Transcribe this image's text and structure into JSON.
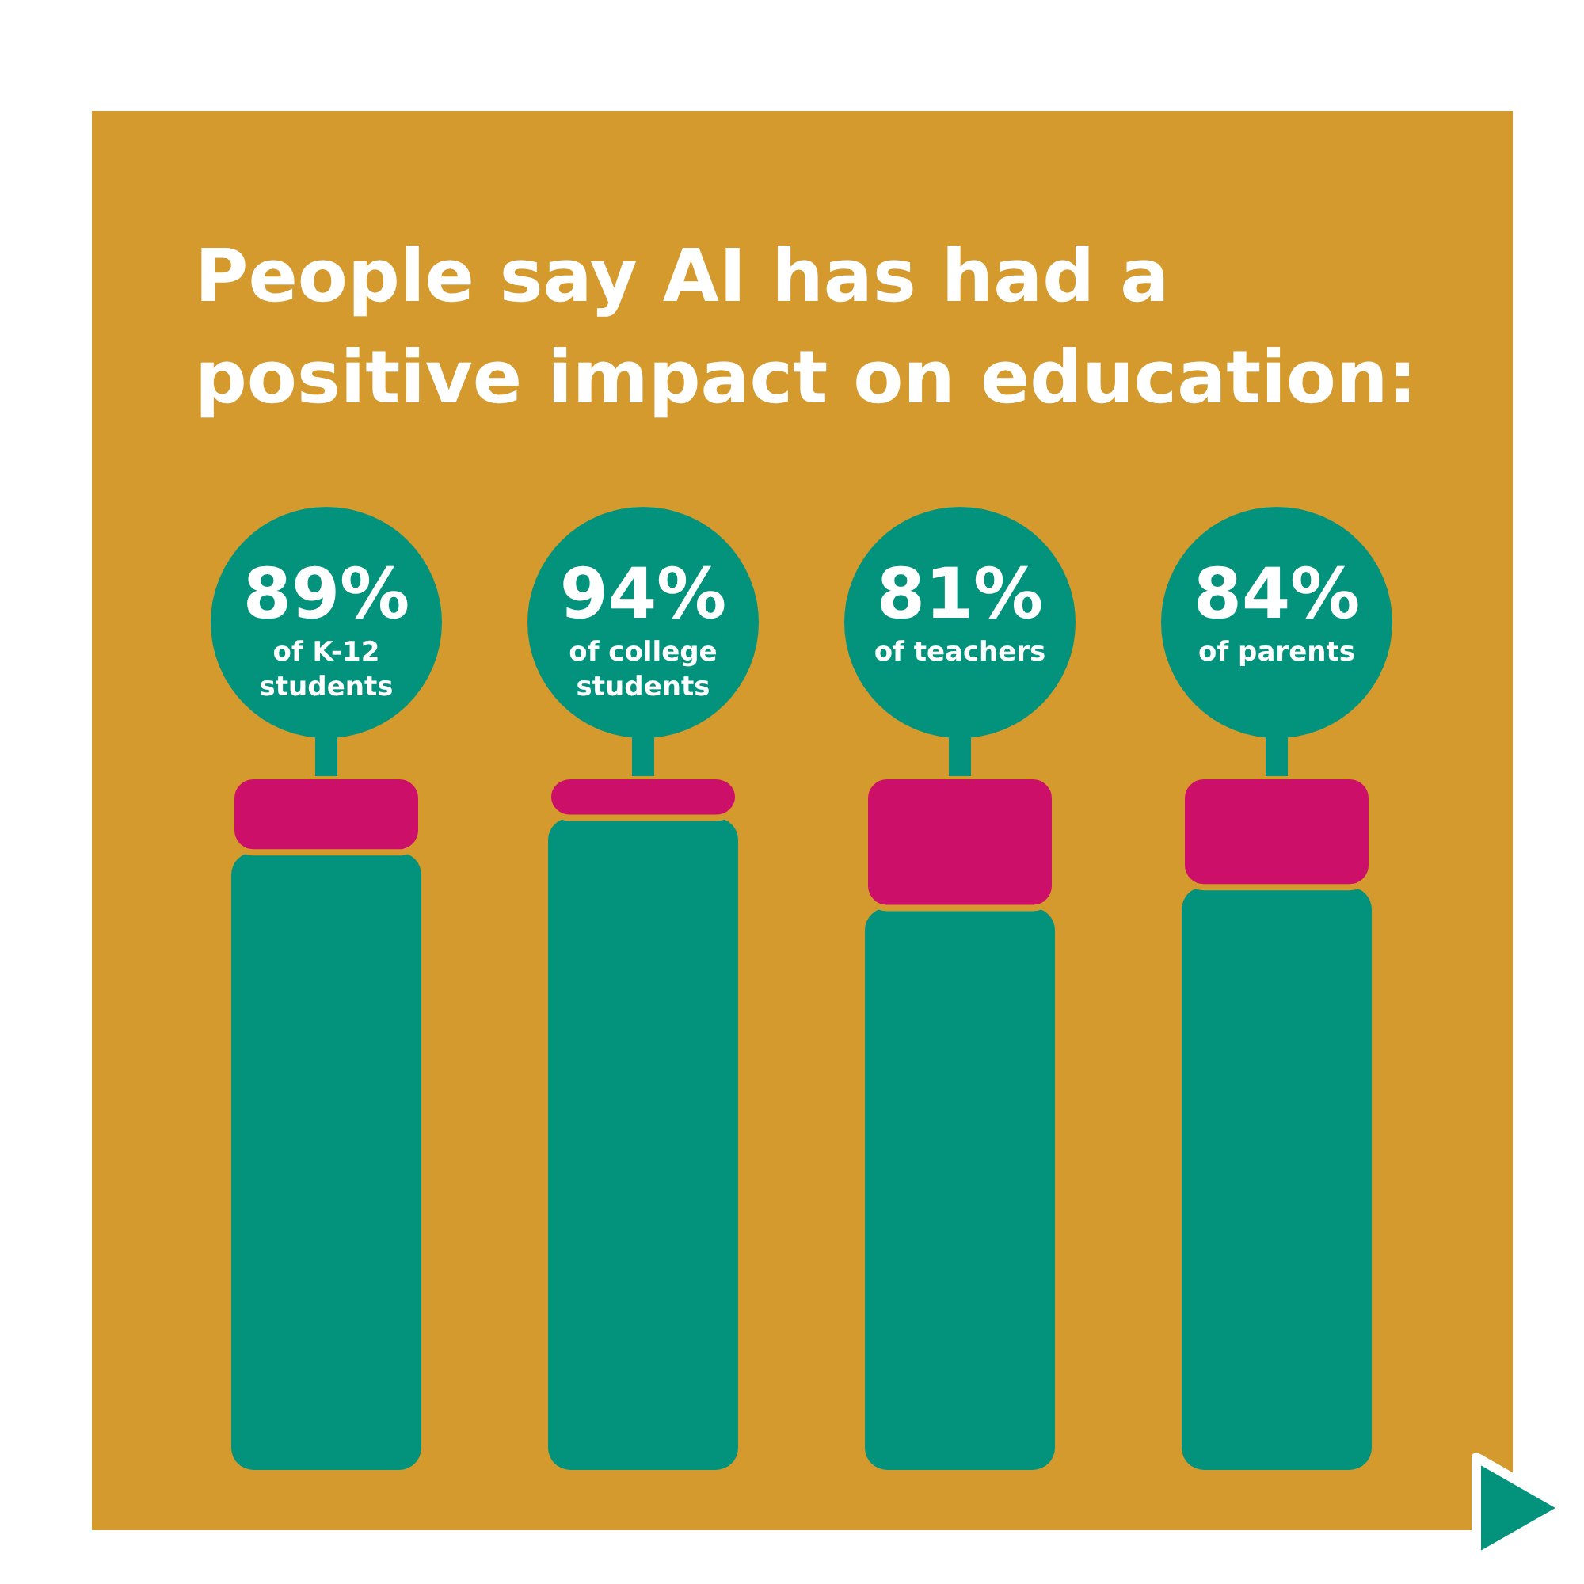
{
  "chart_data": {
    "type": "bar",
    "title": "People say AI has had a positive impact on education:",
    "categories": [
      "of K-12 students",
      "of college students",
      "of teachers",
      "of parents"
    ],
    "stacked": true,
    "series": [
      {
        "color": "#03937c",
        "values": [
          89,
          94,
          81,
          84
        ],
        "value_labels": [
          "89%",
          "94%",
          "81%",
          "84%"
        ]
      },
      {
        "color": "#cc0f68",
        "values": [
          11,
          6,
          19,
          16
        ]
      }
    ]
  }
}
